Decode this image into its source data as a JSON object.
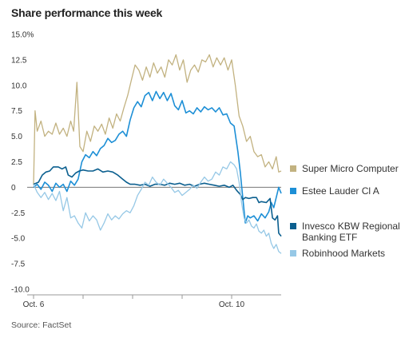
{
  "title": "Share performance this week",
  "source": "Source: FactSet",
  "chart_data": {
    "type": "line",
    "title": "Share performance this week",
    "xlabel": "",
    "ylabel": "",
    "ylim": [
      -10,
      15
    ],
    "y_ticks": [
      {
        "value": 15,
        "label": "15.0%"
      },
      {
        "value": 12.5,
        "label": "12.5"
      },
      {
        "value": 10,
        "label": "10.0"
      },
      {
        "value": 7.5,
        "label": "7.5"
      },
      {
        "value": 5,
        "label": "5.0"
      },
      {
        "value": 2.5,
        "label": "2.5"
      },
      {
        "value": 0,
        "label": "0"
      },
      {
        "value": -2.5,
        "label": "-2.5"
      },
      {
        "value": -5,
        "label": "-5.0"
      },
      {
        "value": -7.5,
        "label": "-7.5"
      },
      {
        "value": -10,
        "label": "-10.0"
      }
    ],
    "x_range": [
      0,
      100
    ],
    "x_ticks": [
      {
        "value": 0,
        "label": "Oct. 6"
      },
      {
        "value": 20,
        "label": ""
      },
      {
        "value": 40,
        "label": ""
      },
      {
        "value": 60,
        "label": ""
      },
      {
        "value": 80,
        "label": "Oct. 10"
      }
    ],
    "zero_line": true,
    "grid": false,
    "legend_position": "right",
    "series": [
      {
        "name": "Super Micro Computer",
        "color": "#c2b280",
        "width": 1.3,
        "points": [
          [
            0,
            0.2
          ],
          [
            0.6,
            7.5
          ],
          [
            1.5,
            5.5
          ],
          [
            3,
            6.5
          ],
          [
            4.5,
            5
          ],
          [
            6,
            5.5
          ],
          [
            7.5,
            5.2
          ],
          [
            9,
            6.3
          ],
          [
            10.5,
            5.2
          ],
          [
            12,
            5.8
          ],
          [
            13.5,
            5
          ],
          [
            15,
            6.5
          ],
          [
            16.2,
            5.5
          ],
          [
            17.5,
            10.3
          ],
          [
            18.7,
            4
          ],
          [
            20,
            3.5
          ],
          [
            21.5,
            5.5
          ],
          [
            23,
            4.5
          ],
          [
            24.5,
            6
          ],
          [
            26,
            5.5
          ],
          [
            27.5,
            6.2
          ],
          [
            29,
            5.2
          ],
          [
            30.5,
            6.8
          ],
          [
            32,
            5.8
          ],
          [
            33.5,
            7.2
          ],
          [
            35,
            6.5
          ],
          [
            36.5,
            7.8
          ],
          [
            38,
            9
          ],
          [
            39.5,
            10.5
          ],
          [
            41,
            12
          ],
          [
            42.5,
            11.5
          ],
          [
            44,
            10.5
          ],
          [
            45.5,
            11.8
          ],
          [
            47,
            10.8
          ],
          [
            48.5,
            12.2
          ],
          [
            50,
            11.2
          ],
          [
            51.5,
            11.8
          ],
          [
            53,
            10.8
          ],
          [
            54.5,
            12.5
          ],
          [
            56,
            12
          ],
          [
            57.5,
            13
          ],
          [
            59,
            11.5
          ],
          [
            60.5,
            12.5
          ],
          [
            62,
            10.3
          ],
          [
            63.5,
            11.5
          ],
          [
            65,
            12
          ],
          [
            66.5,
            11.3
          ],
          [
            68,
            12.5
          ],
          [
            69.5,
            12.3
          ],
          [
            71,
            13
          ],
          [
            72.5,
            11.8
          ],
          [
            74,
            12.7
          ],
          [
            75.5,
            12
          ],
          [
            77,
            12.7
          ],
          [
            78.5,
            11.5
          ],
          [
            80,
            12.5
          ],
          [
            81.5,
            10
          ],
          [
            83,
            7
          ],
          [
            84.5,
            6
          ],
          [
            86,
            4.5
          ],
          [
            87.5,
            5
          ],
          [
            89,
            3.5
          ],
          [
            90.5,
            3
          ],
          [
            92,
            3.2
          ],
          [
            93.5,
            2
          ],
          [
            95,
            2.5
          ],
          [
            96.5,
            1.8
          ],
          [
            98,
            3
          ],
          [
            99,
            1.5
          ],
          [
            100,
            1.6
          ]
        ]
      },
      {
        "name": "Estee Lauder Cl A",
        "color": "#1d8fd6",
        "width": 1.6,
        "points": [
          [
            0,
            0
          ],
          [
            1.5,
            0.3
          ],
          [
            3,
            -0.2
          ],
          [
            4.5,
            0.5
          ],
          [
            6,
            0.2
          ],
          [
            7.5,
            -0.4
          ],
          [
            9,
            0.4
          ],
          [
            10.5,
            0
          ],
          [
            12,
            0.3
          ],
          [
            13.5,
            -0.4
          ],
          [
            15,
            0.6
          ],
          [
            16.5,
            0.2
          ],
          [
            18,
            0.8
          ],
          [
            19.5,
            2.5
          ],
          [
            21,
            3.2
          ],
          [
            22.5,
            2.9
          ],
          [
            24,
            3.5
          ],
          [
            25.5,
            3.1
          ],
          [
            27,
            3.8
          ],
          [
            28.5,
            4.1
          ],
          [
            30,
            4.8
          ],
          [
            31.5,
            4.4
          ],
          [
            33,
            4.6
          ],
          [
            34.5,
            5.2
          ],
          [
            36,
            5.5
          ],
          [
            37.5,
            5
          ],
          [
            39,
            6.6
          ],
          [
            40.5,
            7.8
          ],
          [
            42,
            8.4
          ],
          [
            43.5,
            7.9
          ],
          [
            45,
            9
          ],
          [
            46.5,
            9.3
          ],
          [
            48,
            8.5
          ],
          [
            49.5,
            9.4
          ],
          [
            51,
            8.7
          ],
          [
            52.5,
            9.3
          ],
          [
            54,
            8.5
          ],
          [
            55.5,
            9.2
          ],
          [
            57,
            8
          ],
          [
            58.5,
            7.6
          ],
          [
            60,
            8.5
          ],
          [
            61.5,
            7.3
          ],
          [
            63,
            7.5
          ],
          [
            64.5,
            7.2
          ],
          [
            66,
            7.8
          ],
          [
            67.5,
            7.4
          ],
          [
            69,
            7.9
          ],
          [
            70.5,
            7.6
          ],
          [
            72,
            7.8
          ],
          [
            73.5,
            7.4
          ],
          [
            75,
            7.8
          ],
          [
            76.5,
            7.1
          ],
          [
            78,
            7.2
          ],
          [
            79.5,
            6.3
          ],
          [
            81,
            6
          ],
          [
            82.5,
            3.5
          ],
          [
            83.5,
            1.5
          ],
          [
            84.5,
            -1
          ],
          [
            85.5,
            -3.5
          ],
          [
            86.5,
            -2.8
          ],
          [
            87.5,
            -3
          ],
          [
            89,
            -2.8
          ],
          [
            90.5,
            -3.3
          ],
          [
            92,
            -2.6
          ],
          [
            93.5,
            -3
          ],
          [
            95,
            -2.4
          ],
          [
            96,
            -1.5
          ],
          [
            97,
            -2
          ],
          [
            98,
            -1
          ],
          [
            99,
            0
          ],
          [
            100,
            -0.6
          ]
        ]
      },
      {
        "name": "Invesco KBW Regional Banking ETF",
        "color": "#0b5f8f",
        "width": 1.6,
        "points": [
          [
            0,
            0.3
          ],
          [
            2,
            0.5
          ],
          [
            3.5,
            1.2
          ],
          [
            5,
            1.5
          ],
          [
            6.5,
            1.6
          ],
          [
            8,
            2
          ],
          [
            10,
            2
          ],
          [
            11.5,
            1.8
          ],
          [
            13,
            2
          ],
          [
            14,
            1.2
          ],
          [
            15.5,
            1
          ],
          [
            17,
            1.4
          ],
          [
            18.5,
            1.6
          ],
          [
            20,
            1.7
          ],
          [
            22,
            1.6
          ],
          [
            24,
            1.6
          ],
          [
            26,
            1.8
          ],
          [
            28,
            1.5
          ],
          [
            30,
            1.6
          ],
          [
            32,
            1.5
          ],
          [
            34,
            1.2
          ],
          [
            36,
            0.8
          ],
          [
            37.5,
            0.5
          ],
          [
            39,
            0.3
          ],
          [
            41,
            0.3
          ],
          [
            43,
            0.2
          ],
          [
            45,
            0.3
          ],
          [
            47,
            0.1
          ],
          [
            49,
            0.3
          ],
          [
            51,
            0.3
          ],
          [
            53,
            0.2
          ],
          [
            55,
            0.4
          ],
          [
            57,
            0.3
          ],
          [
            59,
            0.4
          ],
          [
            61,
            0.2
          ],
          [
            63,
            0.3
          ],
          [
            65,
            0.1
          ],
          [
            67,
            0.3
          ],
          [
            69,
            0.4
          ],
          [
            71,
            0.3
          ],
          [
            73,
            0.2
          ],
          [
            75,
            0.1
          ],
          [
            77,
            0.2
          ],
          [
            79,
            0
          ],
          [
            80.5,
            0.2
          ],
          [
            82,
            -0.3
          ],
          [
            83.5,
            -0.7
          ],
          [
            84.5,
            -1.2
          ],
          [
            85.5,
            -1
          ],
          [
            87,
            -1.1
          ],
          [
            88.5,
            -1
          ],
          [
            90,
            -1
          ],
          [
            91,
            -1.5
          ],
          [
            92,
            -1.4
          ],
          [
            94,
            -1.5
          ],
          [
            95.5,
            -1.1
          ],
          [
            96.5,
            -3
          ],
          [
            97.5,
            -3.2
          ],
          [
            98.5,
            -2.8
          ],
          [
            99,
            -4.5
          ],
          [
            100,
            -4.8
          ]
        ]
      },
      {
        "name": "Robinhood Markets",
        "color": "#96c8e6",
        "width": 1.3,
        "points": [
          [
            0,
            0.3
          ],
          [
            1.5,
            -0.5
          ],
          [
            3,
            -1
          ],
          [
            4.5,
            -0.5
          ],
          [
            6,
            -1.2
          ],
          [
            7.5,
            -0.6
          ],
          [
            9,
            -1.3
          ],
          [
            10.5,
            -0.4
          ],
          [
            12,
            -2.3
          ],
          [
            13.5,
            -1
          ],
          [
            15,
            -3
          ],
          [
            16.5,
            -2.8
          ],
          [
            18,
            -3.5
          ],
          [
            19.5,
            -4
          ],
          [
            21,
            -2.5
          ],
          [
            22.5,
            -3.3
          ],
          [
            24,
            -2.8
          ],
          [
            25.5,
            -3.2
          ],
          [
            27,
            -4.2
          ],
          [
            28.5,
            -3.5
          ],
          [
            30,
            -2.6
          ],
          [
            31.5,
            -3.2
          ],
          [
            33,
            -2.8
          ],
          [
            34.5,
            -3.1
          ],
          [
            36,
            -2.6
          ],
          [
            37.5,
            -2.3
          ],
          [
            39,
            -2.5
          ],
          [
            40.5,
            -1.8
          ],
          [
            42,
            -0.8
          ],
          [
            43.5,
            -0.2
          ],
          [
            45,
            0.5
          ],
          [
            46.5,
            0.2
          ],
          [
            48,
            1
          ],
          [
            49.5,
            0.5
          ],
          [
            51,
            0.2
          ],
          [
            52.5,
            0.8
          ],
          [
            54,
            0.4
          ],
          [
            55.5,
            0
          ],
          [
            57,
            -0.5
          ],
          [
            58.5,
            -0.3
          ],
          [
            60,
            -0.8
          ],
          [
            61.5,
            -0.5
          ],
          [
            63,
            -0.2
          ],
          [
            64.5,
            0.2
          ],
          [
            66,
            -0.1
          ],
          [
            67.5,
            0.5
          ],
          [
            69,
            1
          ],
          [
            70.5,
            0.6
          ],
          [
            72,
            0.8
          ],
          [
            73.5,
            1.5
          ],
          [
            75,
            1.2
          ],
          [
            76.5,
            2
          ],
          [
            78,
            1.8
          ],
          [
            79.5,
            2.5
          ],
          [
            81,
            2.2
          ],
          [
            82,
            1.8
          ],
          [
            83,
            0.5
          ],
          [
            84,
            -1.5
          ],
          [
            85,
            -3
          ],
          [
            86,
            -3.5
          ],
          [
            87,
            -3.2
          ],
          [
            88,
            -3.8
          ],
          [
            89,
            -4
          ],
          [
            90,
            -3.6
          ],
          [
            91,
            -4.3
          ],
          [
            92,
            -4.5
          ],
          [
            93,
            -4.2
          ],
          [
            94,
            -4.8
          ],
          [
            95,
            -4.5
          ],
          [
            96,
            -5.5
          ],
          [
            97,
            -6
          ],
          [
            98,
            -5.6
          ],
          [
            99,
            -6.3
          ],
          [
            100,
            -6.5
          ]
        ]
      }
    ],
    "legend": [
      {
        "label": "Super Micro Computer",
        "color": "#c2b280"
      },
      {
        "label": "Estee Lauder Cl A",
        "color": "#1d8fd6"
      },
      {
        "label": "Invesco KBW Regional Banking ETF",
        "label_lines": [
          "Invesco KBW Regional",
          "Banking ETF"
        ],
        "color": "#0b5f8f"
      },
      {
        "label": "Robinhood Markets",
        "color": "#96c8e6"
      }
    ]
  }
}
